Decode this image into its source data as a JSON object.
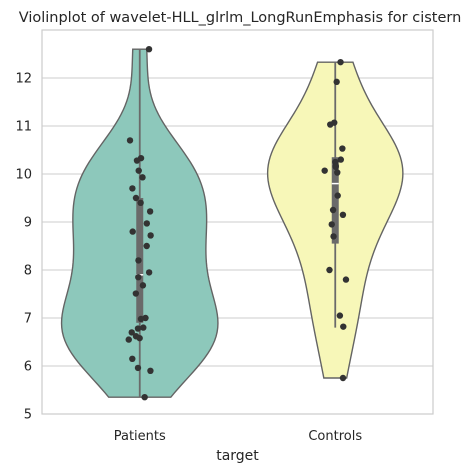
{
  "chart_data": {
    "type": "violin",
    "title": "Violinplot of wavelet-HLL_glrlm_LongRunEmphasis for cistern",
    "xlabel": "target",
    "ylabel": "",
    "ylim": [
      5,
      13
    ],
    "yticks": [
      5,
      6,
      7,
      8,
      9,
      10,
      11,
      12
    ],
    "grid": "horizontal",
    "categories": [
      "Patients",
      "Controls"
    ],
    "colors": {
      "Patients": "#8dc8bb",
      "Controls": "#f7f7b8",
      "outline": "#646464",
      "points": "#333333",
      "box": "#6a6a6a",
      "median": "#ffffff",
      "grid": "#cccccc"
    },
    "series": [
      {
        "name": "Patients",
        "violin_range": [
          5.35,
          12.6
        ],
        "box": {
          "q1": 6.9,
          "median": 7.9,
          "q3": 9.5,
          "whisker_low": 5.35,
          "whisker_high": 12.6
        },
        "points": [
          12.6,
          10.7,
          10.33,
          10.28,
          10.07,
          9.93,
          9.7,
          9.5,
          9.4,
          9.22,
          8.97,
          8.8,
          8.72,
          8.5,
          8.2,
          7.95,
          7.85,
          7.68,
          7.51,
          7.0,
          6.98,
          6.8,
          6.78,
          6.7,
          6.62,
          6.58,
          6.55,
          6.15,
          5.96,
          5.9,
          5.35
        ]
      },
      {
        "name": "Controls",
        "violin_range": [
          5.75,
          12.33
        ],
        "box": {
          "q1": 8.55,
          "median": 9.8,
          "q3": 10.35,
          "whisker_low": 6.8,
          "whisker_high": 12.33
        },
        "points": [
          12.33,
          11.92,
          11.07,
          11.03,
          10.53,
          10.3,
          10.25,
          10.17,
          10.15,
          10.07,
          10.03,
          9.55,
          9.25,
          9.15,
          8.95,
          8.7,
          8.0,
          7.8,
          7.05,
          6.82,
          5.75
        ]
      }
    ]
  }
}
